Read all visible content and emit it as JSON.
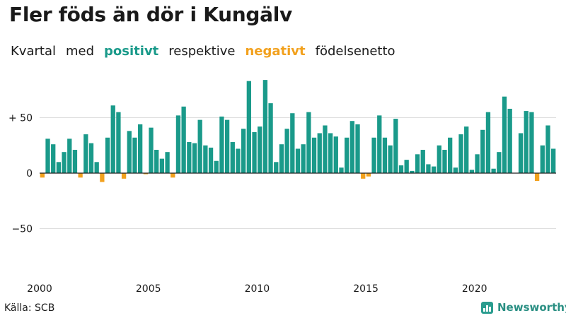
{
  "title": "Fler föds än dör i Kungälv",
  "subtitle": {
    "w1": "Kvartal",
    "w2": "med",
    "positive": "positivt",
    "w3": "respektive",
    "negative": "negativt",
    "w4": "födelsenetto"
  },
  "source": "Källa: SCB",
  "brand": "Newsworthy",
  "colors": {
    "positive": "#1a9a8a",
    "negative": "#f2a11e",
    "grid": "#dddddd",
    "axis": "#222222",
    "text": "#1a1a1a"
  },
  "icons": {
    "logo": "bar-chart-icon"
  },
  "chart_data": {
    "type": "bar",
    "title": "Fler föds än dör i Kungälv",
    "xlabel": "",
    "ylabel": "",
    "ylim": [
      -88,
      90
    ],
    "yticks": [
      50,
      0,
      -50
    ],
    "ytick_labels": [
      "+ 50",
      "0",
      "−50"
    ],
    "x_ticks": [
      2000,
      2005,
      2010,
      2015,
      2020
    ],
    "x_start": 2000,
    "periods_per_year": 4,
    "grid": true,
    "legend": "none",
    "series": [
      {
        "values": [
          -4,
          31,
          26,
          10,
          19,
          31,
          21,
          -4,
          35,
          27,
          10,
          -8,
          32,
          61,
          55,
          -5,
          38,
          32,
          44,
          -1,
          41,
          21,
          13,
          19,
          -4,
          52,
          60,
          28,
          27,
          48,
          25,
          23,
          11,
          51,
          48,
          28,
          22,
          40,
          83,
          37,
          42,
          84,
          63,
          10,
          26,
          40,
          54,
          22,
          26,
          55,
          32,
          36,
          43,
          36,
          33,
          5,
          32,
          47,
          44,
          -5,
          -3,
          32,
          52,
          32,
          25,
          49,
          7,
          12,
          2,
          17,
          21,
          8,
          6,
          25,
          21,
          32,
          5,
          35,
          42,
          3,
          17,
          39,
          55,
          4,
          19,
          69,
          58,
          0,
          36,
          56,
          55,
          -7,
          25,
          43,
          22
        ]
      }
    ]
  }
}
